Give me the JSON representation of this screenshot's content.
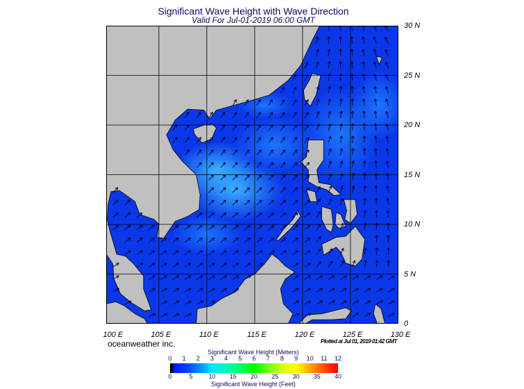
{
  "header": {
    "title": "Significant Wave Height with Wave Direction",
    "subtitle": "Valid For Jul-01-2019 06:00 GMT"
  },
  "map": {
    "extent": {
      "lon": [
        99.5,
        130
      ],
      "lat": [
        0,
        30
      ]
    },
    "lat_labels": [
      "30 N",
      "25 N",
      "20 N",
      "15 N",
      "10 N",
      "5 N",
      "0"
    ],
    "lon_labels": [
      "100 E",
      "105 E",
      "110 E",
      "115 E",
      "120 E",
      "125 E",
      "130 E"
    ],
    "colors": {
      "land": "#c0c0c0",
      "sea_low": "#0a38e8",
      "sea_high": "#3cb4ff",
      "arrow": "#000033",
      "grid": "#000000"
    },
    "prevailing_direction": "southwest monsoon, waves toward northeast"
  },
  "footer": {
    "brand": "oceanweather inc.",
    "plotted": "Plotted at Jul 01, 2019 01:42 GMT"
  },
  "colorbar": {
    "meters_title": "Significant Wave Height (Meters)",
    "feet_title": "Significant Wave Height (Feet)",
    "meters_ticks": [
      "0",
      "1",
      "2",
      "3",
      "4",
      "5",
      "6",
      "7",
      "8",
      "9",
      "10",
      "11",
      "12"
    ],
    "feet_ticks": [
      "0",
      "5",
      "10",
      "15",
      "20",
      "25",
      "30",
      "35",
      "40"
    ],
    "range_meters": [
      0,
      12
    ],
    "range_feet": [
      0,
      40
    ]
  }
}
